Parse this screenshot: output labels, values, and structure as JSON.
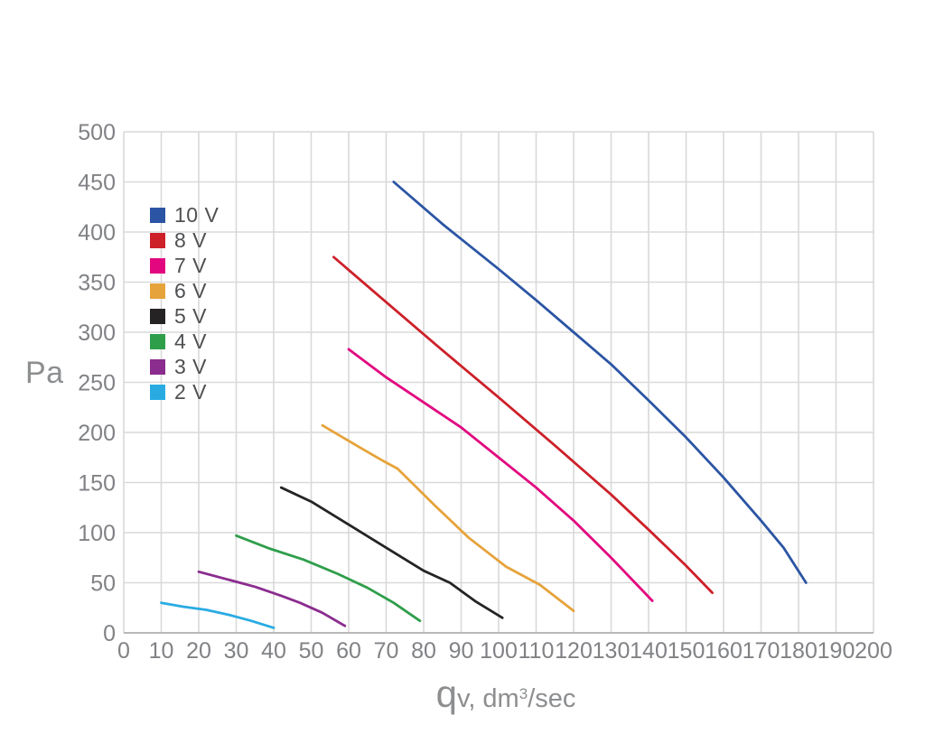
{
  "figure": {
    "background": "#ffffff",
    "grid_color": "#d9d9d9",
    "baseline_color": "#b9b9b9",
    "axis_text_color": "#808285",
    "xlabel_big": "q",
    "xlabel_mid": "v, dm",
    "xlabel_sup": "3",
    "xlabel_tail": "/sec"
  },
  "chart_data": {
    "type": "line",
    "title": "",
    "xlabel": "qv, dm3/sec",
    "ylabel": "Pa",
    "xlim": [
      0,
      200
    ],
    "ylim": [
      0,
      500
    ],
    "grid": true,
    "legend_position": "upper-left-inside",
    "xticks": [
      0,
      10,
      20,
      30,
      40,
      50,
      60,
      70,
      80,
      90,
      100,
      110,
      120,
      130,
      140,
      150,
      160,
      170,
      180,
      190,
      200
    ],
    "yticks": [
      0,
      50,
      100,
      150,
      200,
      250,
      300,
      350,
      400,
      450,
      500
    ],
    "series": [
      {
        "name": "10 V",
        "color": "#2b55a4",
        "points": [
          [
            72,
            450
          ],
          [
            85,
            408
          ],
          [
            100,
            363
          ],
          [
            110,
            332
          ],
          [
            120,
            300
          ],
          [
            130,
            268
          ],
          [
            140,
            232
          ],
          [
            150,
            195
          ],
          [
            160,
            155
          ],
          [
            170,
            112
          ],
          [
            176,
            85
          ],
          [
            182,
            50
          ]
        ]
      },
      {
        "name": "8 V",
        "color": "#cd2029",
        "points": [
          [
            56,
            375
          ],
          [
            70,
            330
          ],
          [
            85,
            282
          ],
          [
            100,
            235
          ],
          [
            115,
            187
          ],
          [
            130,
            138
          ],
          [
            140,
            103
          ],
          [
            150,
            67
          ],
          [
            157,
            40
          ]
        ]
      },
      {
        "name": "7 V",
        "color": "#e2077f",
        "points": [
          [
            60,
            283
          ],
          [
            70,
            255
          ],
          [
            80,
            230
          ],
          [
            90,
            205
          ],
          [
            100,
            175
          ],
          [
            110,
            145
          ],
          [
            120,
            112
          ],
          [
            130,
            75
          ],
          [
            141,
            32
          ]
        ]
      },
      {
        "name": "6 V",
        "color": "#e6a33b",
        "points": [
          [
            53,
            207
          ],
          [
            63,
            185
          ],
          [
            69,
            172
          ],
          [
            73,
            164
          ],
          [
            83,
            127
          ],
          [
            92,
            95
          ],
          [
            102,
            66
          ],
          [
            111,
            48
          ],
          [
            120,
            22
          ]
        ]
      },
      {
        "name": "5 V",
        "color": "#262324",
        "points": [
          [
            42,
            145
          ],
          [
            50,
            131
          ],
          [
            60,
            108
          ],
          [
            70,
            85
          ],
          [
            80,
            62
          ],
          [
            87,
            50
          ],
          [
            94,
            31
          ],
          [
            101,
            15
          ]
        ]
      },
      {
        "name": "4 V",
        "color": "#2f9e4b",
        "points": [
          [
            30,
            97
          ],
          [
            39,
            84
          ],
          [
            48,
            73
          ],
          [
            57,
            59
          ],
          [
            65,
            45
          ],
          [
            72,
            30
          ],
          [
            79,
            12
          ]
        ]
      },
      {
        "name": "3 V",
        "color": "#8b2c8f",
        "points": [
          [
            20,
            61
          ],
          [
            28,
            53
          ],
          [
            35,
            46
          ],
          [
            42,
            37
          ],
          [
            47,
            30
          ],
          [
            53,
            20
          ],
          [
            59,
            7
          ]
        ]
      },
      {
        "name": "2 V",
        "color": "#29abe2",
        "points": [
          [
            10,
            30
          ],
          [
            16,
            26
          ],
          [
            22,
            23
          ],
          [
            28,
            18
          ],
          [
            34,
            12
          ],
          [
            40,
            5
          ]
        ]
      }
    ]
  }
}
